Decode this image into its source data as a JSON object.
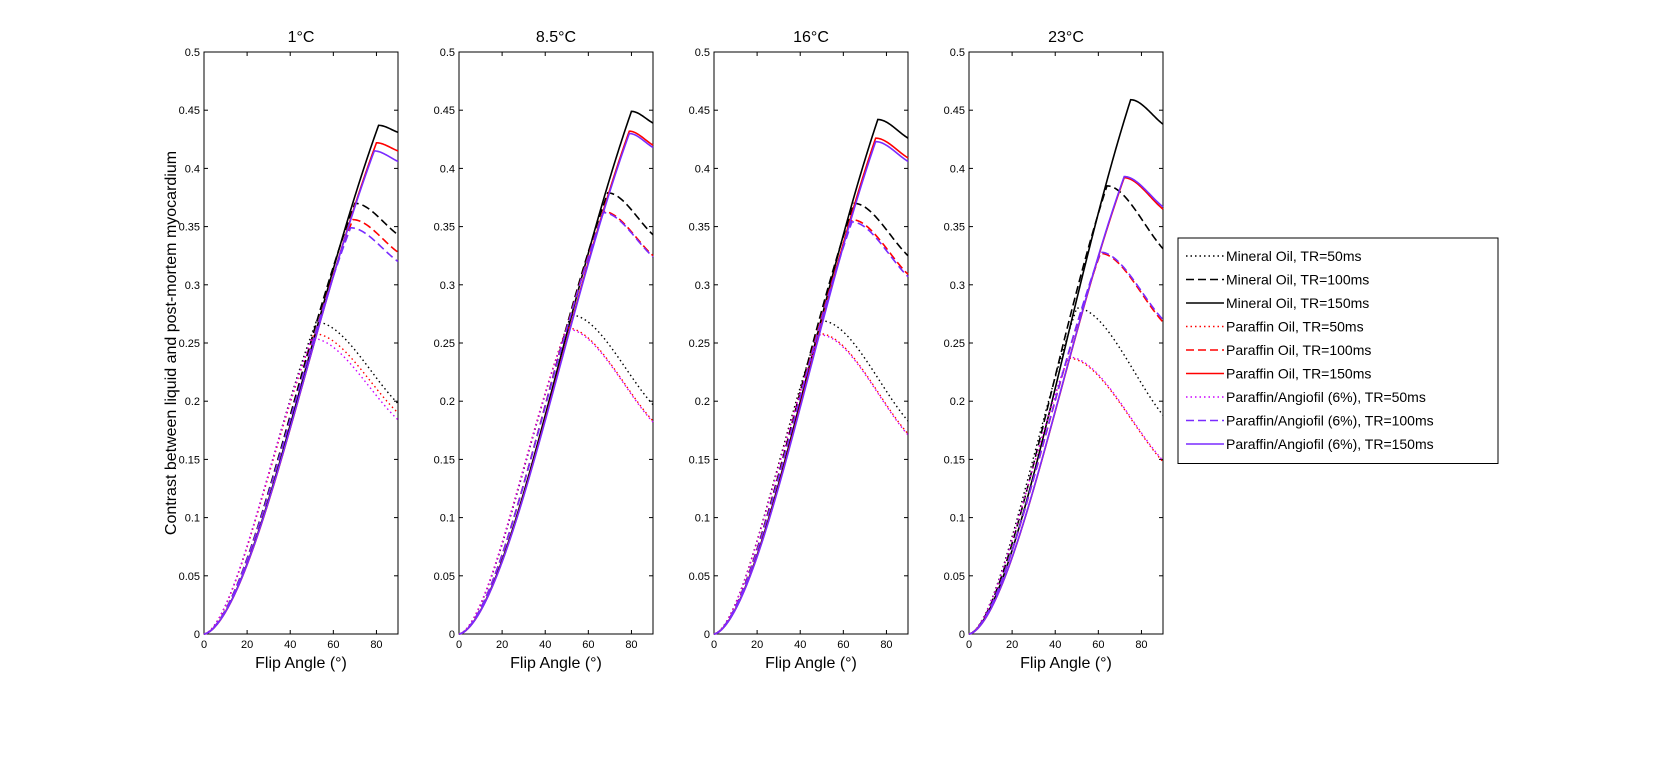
{
  "figure": {
    "ylabel": "Contrast between liquid and post-mortem myocardium",
    "xlabel": "Flip Angle (°)"
  },
  "legend": {
    "entries": [
      {
        "label": "Mineral Oil, TR=50ms",
        "color": "#000000",
        "style": "dotted"
      },
      {
        "label": "Mineral Oil, TR=100ms",
        "color": "#000000",
        "style": "dashed"
      },
      {
        "label": "Mineral Oil, TR=150ms",
        "color": "#000000",
        "style": "solid"
      },
      {
        "label": "Paraffin Oil, TR=50ms",
        "color": "#ff0000",
        "style": "dotted"
      },
      {
        "label": "Paraffin Oil, TR=100ms",
        "color": "#ff0000",
        "style": "dashed"
      },
      {
        "label": "Paraffin Oil, TR=150ms",
        "color": "#ff0000",
        "style": "solid"
      },
      {
        "label": "Paraffin/Angiofil (6%), TR=50ms",
        "color": "#cc00ff",
        "style": "dotted"
      },
      {
        "label": "Paraffin/Angiofil (6%), TR=100ms",
        "color": "#7a2bff",
        "style": "dashed"
      },
      {
        "label": "Paraffin/Angiofil (6%), TR=150ms",
        "color": "#7a2bff",
        "style": "solid"
      }
    ]
  },
  "chart_data": [
    {
      "type": "line",
      "title": "1°C",
      "xlim": [
        0,
        90
      ],
      "ylim": [
        0,
        0.5
      ],
      "xticks": [
        0,
        20,
        40,
        60,
        80
      ],
      "yticks": [
        0,
        0.05,
        0.1,
        0.15,
        0.2,
        0.25,
        0.3,
        0.35,
        0.4,
        0.45,
        0.5
      ],
      "series": [
        {
          "name": "Mineral Oil, TR=50ms",
          "peak_x": 52,
          "peak_y": 0.268,
          "end_y": 0.198
        },
        {
          "name": "Mineral Oil, TR=100ms",
          "peak_x": 70,
          "peak_y": 0.37,
          "end_y": 0.343
        },
        {
          "name": "Mineral Oil, TR=150ms",
          "peak_x": 81,
          "peak_y": 0.437,
          "end_y": 0.431
        },
        {
          "name": "Paraffin Oil, TR=50ms",
          "peak_x": 51,
          "peak_y": 0.258,
          "end_y": 0.19
        },
        {
          "name": "Paraffin Oil, TR=100ms",
          "peak_x": 69,
          "peak_y": 0.356,
          "end_y": 0.328
        },
        {
          "name": "Paraffin Oil, TR=150ms",
          "peak_x": 80,
          "peak_y": 0.422,
          "end_y": 0.415
        },
        {
          "name": "Paraffin/Angiofil (6%), TR=50ms",
          "peak_x": 50,
          "peak_y": 0.254,
          "end_y": 0.184
        },
        {
          "name": "Paraffin/Angiofil (6%), TR=100ms",
          "peak_x": 68,
          "peak_y": 0.349,
          "end_y": 0.32
        },
        {
          "name": "Paraffin/Angiofil (6%), TR=150ms",
          "peak_x": 79,
          "peak_y": 0.415,
          "end_y": 0.406
        }
      ]
    },
    {
      "type": "line",
      "title": "8.5°C",
      "xlim": [
        0,
        90
      ],
      "ylim": [
        0,
        0.5
      ],
      "xticks": [
        0,
        20,
        40,
        60,
        80
      ],
      "yticks": [
        0,
        0.05,
        0.1,
        0.15,
        0.2,
        0.25,
        0.3,
        0.35,
        0.4,
        0.45,
        0.5
      ],
      "series": [
        {
          "name": "Mineral Oil, TR=50ms",
          "peak_x": 52,
          "peak_y": 0.274,
          "end_y": 0.197
        },
        {
          "name": "Mineral Oil, TR=100ms",
          "peak_x": 69,
          "peak_y": 0.379,
          "end_y": 0.343
        },
        {
          "name": "Mineral Oil, TR=150ms",
          "peak_x": 80,
          "peak_y": 0.449,
          "end_y": 0.439
        },
        {
          "name": "Paraffin Oil, TR=50ms",
          "peak_x": 50,
          "peak_y": 0.263,
          "end_y": 0.183
        },
        {
          "name": "Paraffin Oil, TR=100ms",
          "peak_x": 67,
          "peak_y": 0.363,
          "end_y": 0.325
        },
        {
          "name": "Paraffin Oil, TR=150ms",
          "peak_x": 79,
          "peak_y": 0.432,
          "end_y": 0.42
        },
        {
          "name": "Paraffin/Angiofil (6%), TR=50ms",
          "peak_x": 50,
          "peak_y": 0.262,
          "end_y": 0.182
        },
        {
          "name": "Paraffin/Angiofil (6%), TR=100ms",
          "peak_x": 67,
          "peak_y": 0.362,
          "end_y": 0.324
        },
        {
          "name": "Paraffin/Angiofil (6%), TR=150ms",
          "peak_x": 79,
          "peak_y": 0.43,
          "end_y": 0.418
        }
      ]
    },
    {
      "type": "line",
      "title": "16°C",
      "xlim": [
        0,
        90
      ],
      "ylim": [
        0,
        0.5
      ],
      "xticks": [
        0,
        20,
        40,
        60,
        80
      ],
      "yticks": [
        0,
        0.05,
        0.1,
        0.15,
        0.2,
        0.25,
        0.3,
        0.35,
        0.4,
        0.45,
        0.5
      ],
      "series": [
        {
          "name": "Mineral Oil, TR=50ms",
          "peak_x": 50,
          "peak_y": 0.269,
          "end_y": 0.183
        },
        {
          "name": "Mineral Oil, TR=100ms",
          "peak_x": 65,
          "peak_y": 0.37,
          "end_y": 0.325
        },
        {
          "name": "Mineral Oil, TR=150ms",
          "peak_x": 76,
          "peak_y": 0.442,
          "end_y": 0.426
        },
        {
          "name": "Paraffin Oil, TR=50ms",
          "peak_x": 49,
          "peak_y": 0.258,
          "end_y": 0.172
        },
        {
          "name": "Paraffin Oil, TR=100ms",
          "peak_x": 64,
          "peak_y": 0.356,
          "end_y": 0.309
        },
        {
          "name": "Paraffin Oil, TR=150ms",
          "peak_x": 75,
          "peak_y": 0.426,
          "end_y": 0.409
        },
        {
          "name": "Paraffin/Angiofil (6%), TR=50ms",
          "peak_x": 49,
          "peak_y": 0.257,
          "end_y": 0.171
        },
        {
          "name": "Paraffin/Angiofil (6%), TR=100ms",
          "peak_x": 64,
          "peak_y": 0.354,
          "end_y": 0.307
        },
        {
          "name": "Paraffin/Angiofil (6%), TR=150ms",
          "peak_x": 75,
          "peak_y": 0.423,
          "end_y": 0.406
        }
      ]
    },
    {
      "type": "line",
      "title": "23°C",
      "xlim": [
        0,
        90
      ],
      "ylim": [
        0,
        0.5
      ],
      "xticks": [
        0,
        20,
        40,
        60,
        80
      ],
      "yticks": [
        0,
        0.05,
        0.1,
        0.15,
        0.2,
        0.25,
        0.3,
        0.35,
        0.4,
        0.45,
        0.5
      ],
      "series": [
        {
          "name": "Mineral Oil, TR=50ms",
          "peak_x": 50,
          "peak_y": 0.28,
          "end_y": 0.188
        },
        {
          "name": "Mineral Oil, TR=100ms",
          "peak_x": 64,
          "peak_y": 0.385,
          "end_y": 0.331
        },
        {
          "name": "Mineral Oil, TR=150ms",
          "peak_x": 75,
          "peak_y": 0.459,
          "end_y": 0.438
        },
        {
          "name": "Paraffin Oil, TR=50ms",
          "peak_x": 46,
          "peak_y": 0.237,
          "end_y": 0.148
        },
        {
          "name": "Paraffin Oil, TR=100ms",
          "peak_x": 61,
          "peak_y": 0.327,
          "end_y": 0.268
        },
        {
          "name": "Paraffin Oil, TR=150ms",
          "peak_x": 72,
          "peak_y": 0.392,
          "end_y": 0.365
        },
        {
          "name": "Paraffin/Angiofil (6%), TR=50ms",
          "peak_x": 46,
          "peak_y": 0.238,
          "end_y": 0.149
        },
        {
          "name": "Paraffin/Angiofil (6%), TR=100ms",
          "peak_x": 61,
          "peak_y": 0.328,
          "end_y": 0.27
        },
        {
          "name": "Paraffin/Angiofil (6%), TR=150ms",
          "peak_x": 72,
          "peak_y": 0.393,
          "end_y": 0.367
        }
      ]
    }
  ]
}
